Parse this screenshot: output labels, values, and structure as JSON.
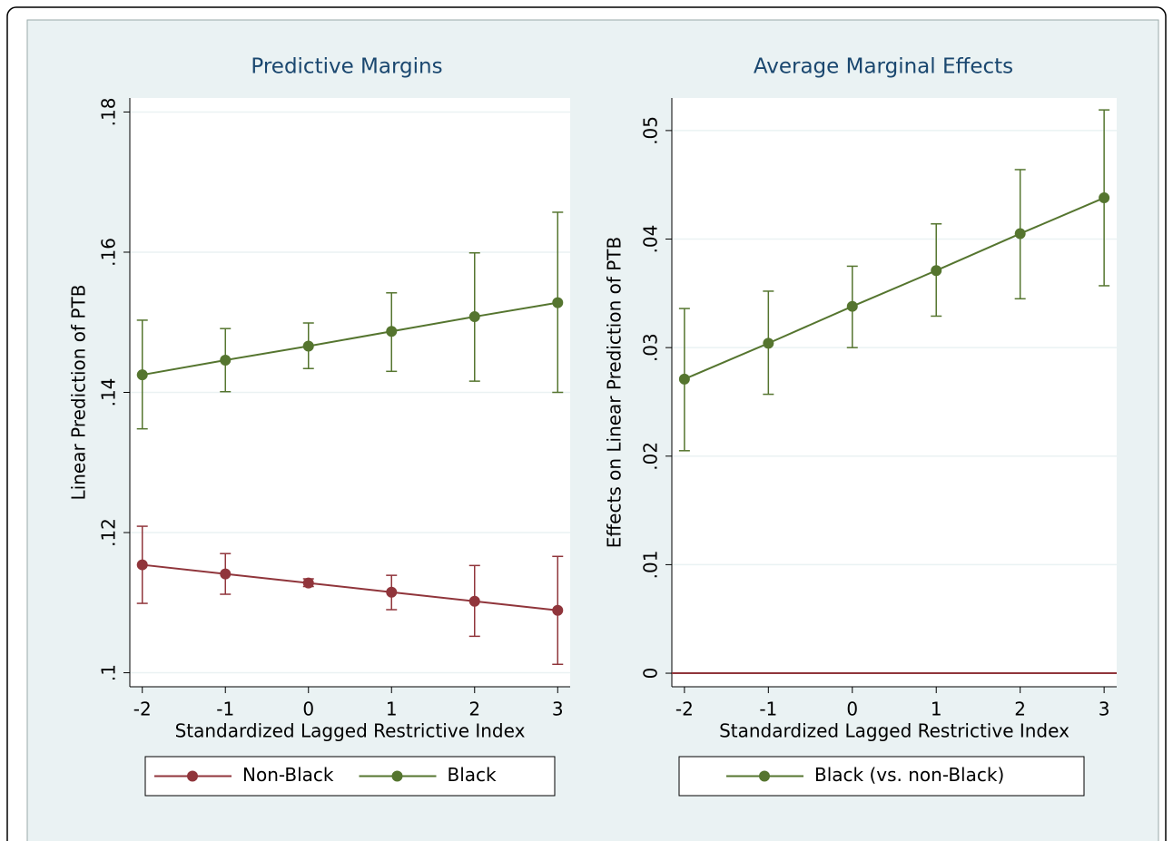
{
  "chart_data": [
    {
      "type": "line",
      "title": "Predictive Margins",
      "xlabel": "Standardized Lagged Restrictive Index",
      "ylabel": "Linear Prediction of PTB",
      "x": [
        -2,
        -1,
        0,
        1,
        2,
        3
      ],
      "xlim": [
        -2.15,
        3.15
      ],
      "xticks": [
        -2,
        -1,
        0,
        1,
        2,
        3
      ],
      "ylim": [
        0.098,
        0.182
      ],
      "yticks": [
        {
          "value": 0.1,
          "label": ".1"
        },
        {
          "value": 0.12,
          "label": ".12"
        },
        {
          "value": 0.14,
          "label": ".14"
        },
        {
          "value": 0.16,
          "label": ".16"
        },
        {
          "value": 0.18,
          "label": ".18"
        }
      ],
      "grid": true,
      "series": [
        {
          "name": "Non-Black",
          "color": "#90353b",
          "values": [
            0.1154,
            0.1141,
            0.1128,
            0.1115,
            0.1102,
            0.1089
          ],
          "lower": [
            0.1099,
            0.1112,
            0.1123,
            0.109,
            0.1052,
            0.1012
          ],
          "upper": [
            0.1209,
            0.117,
            0.1134,
            0.1139,
            0.1153,
            0.1166
          ]
        },
        {
          "name": "Black",
          "color": "#55752f",
          "values": [
            0.1425,
            0.1446,
            0.1466,
            0.1487,
            0.1508,
            0.1528
          ],
          "lower": [
            0.1348,
            0.1401,
            0.1434,
            0.143,
            0.1416,
            0.14
          ],
          "upper": [
            0.1503,
            0.1491,
            0.1499,
            0.1542,
            0.1599,
            0.1657
          ]
        }
      ]
    },
    {
      "type": "line",
      "title": "Average Marginal Effects",
      "xlabel": "Standardized Lagged Restrictive Index",
      "ylabel": "Effects on Linear Prediction of PTB",
      "x": [
        -2,
        -1,
        0,
        1,
        2,
        3
      ],
      "xlim": [
        -2.15,
        3.15
      ],
      "xticks": [
        -2,
        -1,
        0,
        1,
        2,
        3
      ],
      "ylim": [
        -0.00125,
        0.053
      ],
      "yticks": [
        0,
        {
          "value": 0.01,
          "label": ".01"
        },
        {
          "value": 0.02,
          "label": ".02"
        },
        {
          "value": 0.03,
          "label": ".03"
        },
        {
          "value": 0.04,
          "label": ".04"
        },
        {
          "value": 0.05,
          "label": ".05"
        }
      ],
      "grid": true,
      "reference_line": {
        "value": 0,
        "color": "#90353b"
      },
      "series": [
        {
          "name": "Black (vs. non-Black)",
          "color": "#55752f",
          "values": [
            0.0271,
            0.0304,
            0.0338,
            0.0371,
            0.0405,
            0.0438
          ],
          "lower": [
            0.0205,
            0.0257,
            0.03,
            0.0329,
            0.0345,
            0.0357
          ],
          "upper": [
            0.0336,
            0.0352,
            0.0375,
            0.0414,
            0.0464,
            0.0519
          ]
        }
      ]
    }
  ]
}
